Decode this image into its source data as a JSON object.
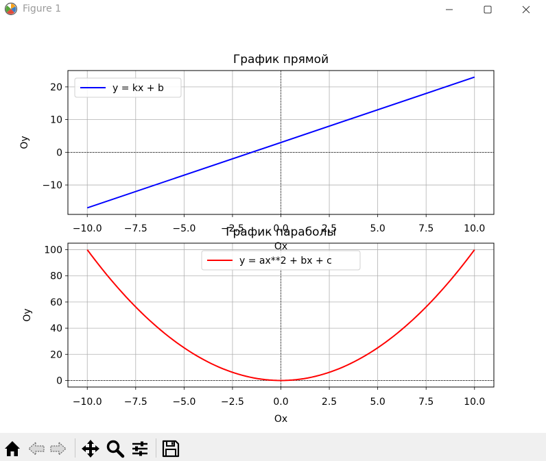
{
  "window": {
    "title": "Figure 1",
    "icons": {
      "app": "matplotlib-icon",
      "minimize": "minimize-icon",
      "maximize": "maximize-icon",
      "close": "close-icon"
    }
  },
  "toolbar": {
    "buttons": [
      {
        "icon": "home-icon"
      },
      {
        "icon": "back-arrow-icon"
      },
      {
        "icon": "forward-arrow-icon"
      },
      {
        "icon": "pan-icon"
      },
      {
        "icon": "zoom-icon"
      },
      {
        "icon": "configure-subplots-icon"
      },
      {
        "icon": "save-icon"
      }
    ]
  },
  "chart_data": [
    {
      "type": "line",
      "title": "График прямой",
      "xlabel": "Ox",
      "ylabel": "Oy",
      "xlim": [
        -11,
        11
      ],
      "ylim": [
        -19,
        25
      ],
      "xticks": [
        -10.0,
        -7.5,
        -5.0,
        -2.5,
        0.0,
        2.5,
        5.0,
        7.5,
        10.0
      ],
      "xtick_labels": [
        "−10.0",
        "−7.5",
        "−5.0",
        "−2.5",
        "0.0",
        "2.5",
        "5.0",
        "7.5",
        "10.0"
      ],
      "yticks": [
        -10,
        0,
        10,
        20
      ],
      "ytick_labels": [
        "−10",
        "0",
        "10",
        "20"
      ],
      "grid": true,
      "zero_lines": true,
      "legend_position": "upper-left",
      "series": [
        {
          "name": "y = kx + b",
          "color": "#0000ff",
          "x": [
            -10,
            10
          ],
          "y": [
            -17,
            23
          ]
        }
      ]
    },
    {
      "type": "line",
      "title": "График параболы",
      "xlabel": "Ox",
      "ylabel": "Oy",
      "xlim": [
        -11,
        11
      ],
      "ylim": [
        -5,
        105
      ],
      "xticks": [
        -10.0,
        -7.5,
        -5.0,
        -2.5,
        0.0,
        2.5,
        5.0,
        7.5,
        10.0
      ],
      "xtick_labels": [
        "−10.0",
        "−7.5",
        "−5.0",
        "−2.5",
        "0.0",
        "2.5",
        "5.0",
        "7.5",
        "10.0"
      ],
      "yticks": [
        0,
        20,
        40,
        60,
        80,
        100
      ],
      "ytick_labels": [
        "0",
        "20",
        "40",
        "60",
        "80",
        "100"
      ],
      "grid": true,
      "zero_lines": true,
      "legend_position": "upper-center",
      "series": [
        {
          "name": "y = ax**2 + bx + c",
          "color": "#ff0000",
          "x": [
            -10,
            -9,
            -8,
            -7,
            -6,
            -5,
            -4,
            -3,
            -2,
            -1,
            0,
            1,
            2,
            3,
            4,
            5,
            6,
            7,
            8,
            9,
            10
          ],
          "y": [
            100,
            81,
            64,
            49,
            36,
            25,
            16,
            9,
            4,
            1,
            0,
            1,
            4,
            9,
            16,
            25,
            36,
            49,
            64,
            81,
            100
          ]
        }
      ]
    }
  ]
}
